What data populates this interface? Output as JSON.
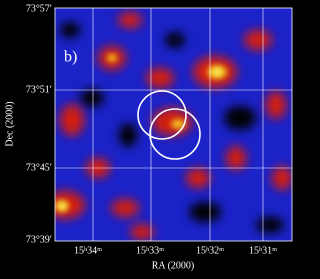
{
  "panel_label": "b)",
  "axes": {
    "x_label": "RA (2000)",
    "y_label": "Dec (2000)",
    "x_ticks": [
      "15ʰ34ᵐ",
      "15ʰ33ᵐ",
      "15ʰ32ᵐ",
      "15ʰ31ᵐ"
    ],
    "y_ticks": [
      "73°57′",
      "73°51′",
      "73°45′",
      "73°39′"
    ]
  }
}
